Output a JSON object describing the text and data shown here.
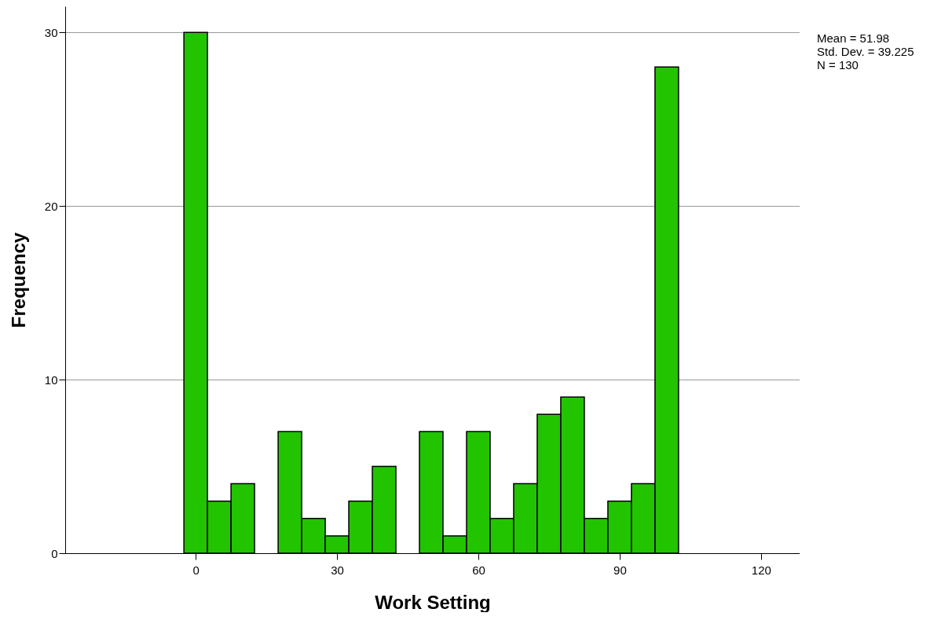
{
  "chart_data": {
    "type": "histogram",
    "xlabel": "Work Setting",
    "ylabel": "Frequency",
    "bins": [
      -2.5,
      2.5,
      7.5,
      12.5,
      17.5,
      22.5,
      27.5,
      32.5,
      37.5,
      42.5,
      47.5,
      52.5,
      57.5,
      62.5,
      67.5,
      72.5,
      77.5,
      82.5,
      87.5,
      92.5,
      97.5,
      102.5
    ],
    "values": [
      30,
      3,
      4,
      0,
      7,
      2,
      1,
      3,
      5,
      0,
      7,
      1,
      7,
      2,
      4,
      8,
      9,
      2,
      3,
      4,
      28
    ],
    "color": "#22c400",
    "xlim": [
      -27.7,
      128.2
    ],
    "xticks": [
      0,
      30,
      60,
      90,
      120
    ],
    "ylim": [
      0,
      31.5
    ],
    "yticks": [
      0,
      10,
      20,
      30
    ],
    "grid": "y",
    "annotations": [
      "Mean = 51.98",
      "Std. Dev. = 39.225",
      "N = 130"
    ]
  }
}
